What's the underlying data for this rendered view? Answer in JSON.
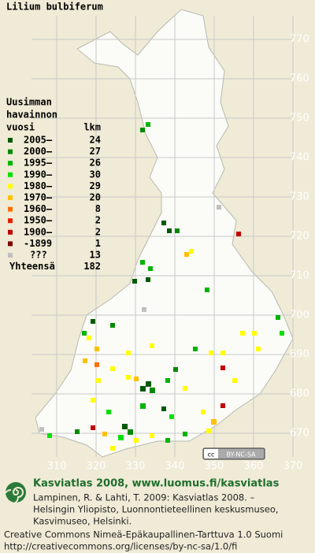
{
  "title": "Lilium bulbiferum",
  "axes": {
    "y_labels": [
      770,
      760,
      750,
      740,
      730,
      720,
      710,
      700,
      690,
      680,
      670
    ],
    "x_labels": [
      310,
      320,
      330,
      340,
      350,
      360,
      370
    ]
  },
  "legend": {
    "header": [
      "Uusimman",
      "havainnon",
      "vuosi"
    ],
    "count_header": "lkm",
    "rows": [
      {
        "label": "2005–",
        "count": 24,
        "color": "#005a00"
      },
      {
        "label": "2000–",
        "count": 27,
        "color": "#008a00"
      },
      {
        "label": "1995–",
        "count": 26,
        "color": "#00b400"
      },
      {
        "label": "1990–",
        "count": 30,
        "color": "#00e000"
      },
      {
        "label": "1980–",
        "count": 29,
        "color": "#ffff00"
      },
      {
        "label": "1970–",
        "count": 20,
        "color": "#ffc000"
      },
      {
        "label": "1960–",
        "count": 8,
        "color": "#ff7000"
      },
      {
        "label": "1950–",
        "count": 2,
        "color": "#e82000"
      },
      {
        "label": "1900–",
        "count": 2,
        "color": "#c00000"
      },
      {
        "label": "-1899",
        "count": 1,
        "color": "#800000"
      },
      {
        "label": "???",
        "count": 13,
        "color": "#c0c0c0"
      }
    ],
    "total": {
      "label": "Yhteensä",
      "count": 182
    }
  },
  "badge": "BY-NC-SA",
  "footer": {
    "heading": "Kasviatlas 2008, www.luomus.fi/kasviatlas",
    "citation": [
      "Lampinen, R. & Lahti, T. 2009: Kasviatlas 2008. –",
      "Helsingin Yliopisto, Luonnontieteellinen keskusmuseo,",
      "Kasvimuseo, Helsinki."
    ],
    "license": [
      "Creative Commons Nimeä-Epäkaupallinen-Tarttuva 1.0 Suomi",
      "http://creativecommons.org/licenses/by-nc-sa/1.0/fi"
    ]
  }
}
